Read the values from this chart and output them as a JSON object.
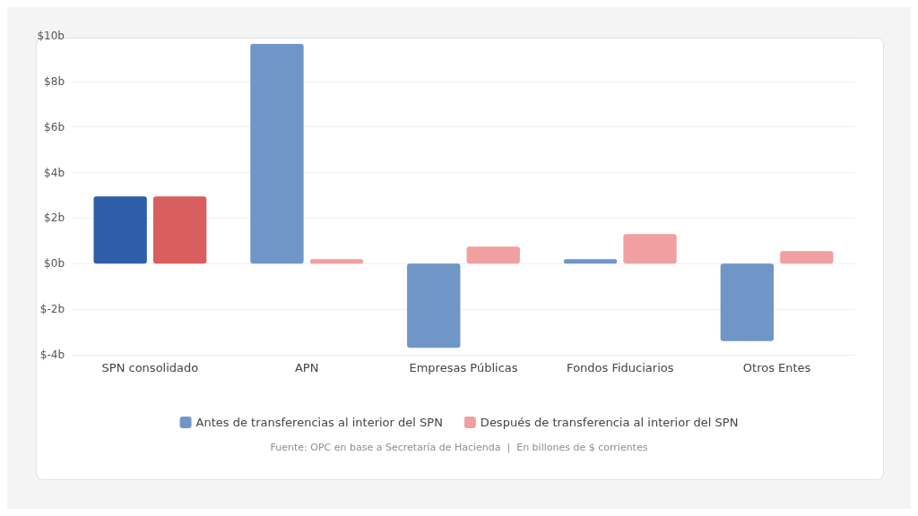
{
  "chart_data": {
    "type": "bar",
    "categories": [
      "SPN consolidado",
      "APN",
      "Empresas Públicas",
      "Fondos Fiduciarios",
      "Otros Entes"
    ],
    "series": [
      {
        "name": "Antes de transferencias al interior del SPN",
        "color": "#7096c8",
        "colors": [
          "#2e5ea8",
          "#7096c8",
          "#7096c8",
          "#7096c8",
          "#7096c8"
        ],
        "values": [
          2.95,
          9.65,
          -3.7,
          0.2,
          -3.4
        ]
      },
      {
        "name": "Después de transferencia al interior del SPN",
        "color": "#f0a0a0",
        "colors": [
          "#d95f5e",
          "#f0a0a0",
          "#f0a0a0",
          "#f0a0a0",
          "#f0a0a0"
        ],
        "values": [
          2.95,
          0.2,
          0.75,
          1.3,
          0.55
        ]
      }
    ],
    "ylim": [
      -4,
      10
    ],
    "yticks": [
      {
        "value": -4,
        "label": "$-4b"
      },
      {
        "value": -2,
        "label": "$-2b"
      },
      {
        "value": 0,
        "label": "$0b"
      },
      {
        "value": 2,
        "label": "$2b"
      },
      {
        "value": 4,
        "label": "$4b"
      },
      {
        "value": 6,
        "label": "$6b"
      },
      {
        "value": 8,
        "label": "$8b"
      },
      {
        "value": 10,
        "label": "$10b"
      }
    ],
    "grid": "y",
    "legend": "bottom",
    "annotations": [
      "Fuente: OPC en base a Secretaría de Hacienda  |  En billones de $ corrientes"
    ]
  }
}
